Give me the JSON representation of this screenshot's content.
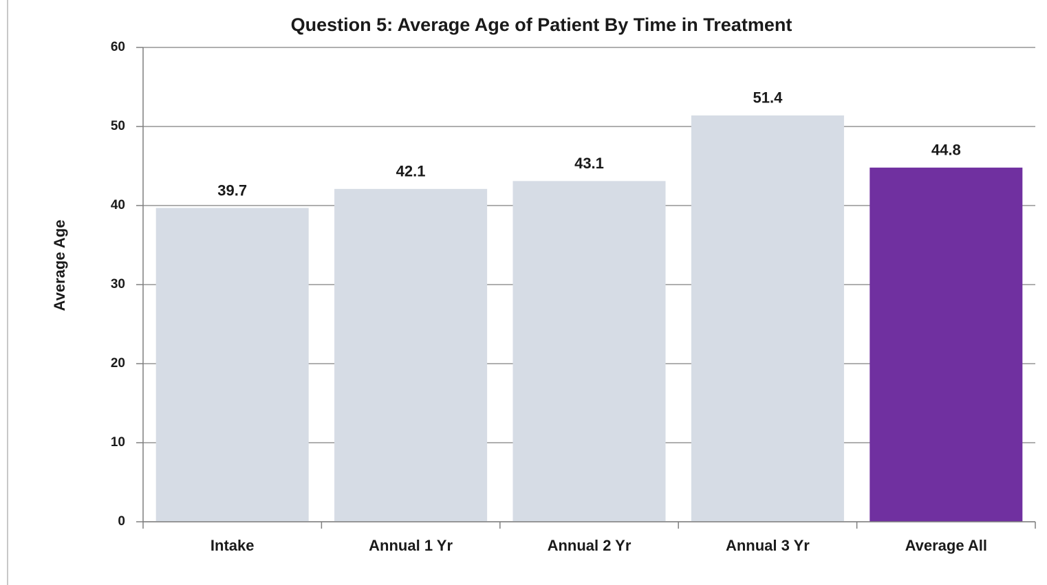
{
  "chart_data": {
    "type": "bar",
    "title": "Question 5: Average Age of Patient By Time in Treatment",
    "y_label": "Average Age",
    "categories": [
      "Intake",
      "Annual 1 Yr",
      "Annual 2 Yr",
      "Annual 3 Yr",
      "Average All"
    ],
    "values": [
      39.7,
      42.1,
      43.1,
      51.4,
      44.8
    ],
    "colors": [
      "#d6dce5",
      "#d6dce5",
      "#d6dce5",
      "#d6dce5",
      "#7030a0"
    ],
    "ylim": [
      0,
      60
    ],
    "yticks": [
      0,
      10,
      20,
      30,
      40,
      50,
      60
    ],
    "grid": true
  }
}
